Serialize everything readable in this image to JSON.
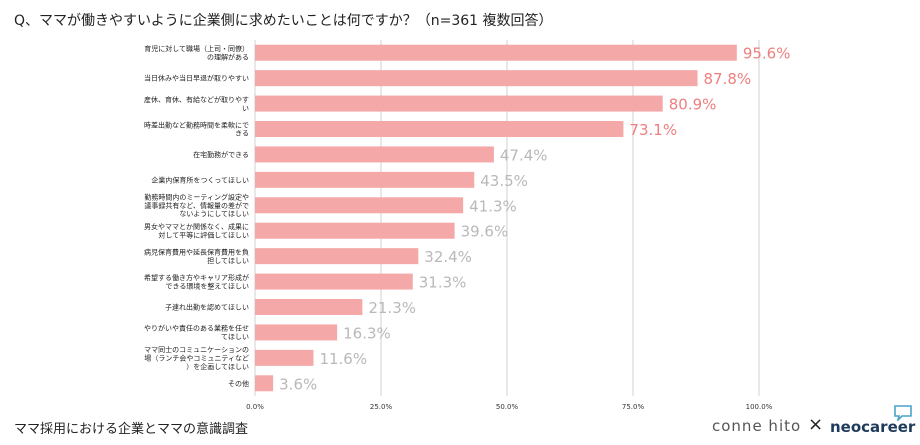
{
  "title": "Q、ママが働きやすいように企業側に求めたいことは何ですか？（n=361 複数回答）",
  "footer": {
    "caption": "ママ採用における企業とママの意識調査",
    "brand_connehito": "conne hito",
    "brand_x": "×",
    "brand_neocareer": "neocareer"
  },
  "colors": {
    "bar": "#f4a8a8",
    "highlight_label": "#ee7f7f",
    "muted_label": "#b9b9b9",
    "grid": "#d0d0d0"
  },
  "chart_data": {
    "type": "bar",
    "orientation": "horizontal",
    "categories": [
      [
        "育児に対して職場（上司・同僚）",
        "の理解がある"
      ],
      [
        "当日休みや当日早退が取りやすい"
      ],
      [
        "産休、育休、有給などが取りやす",
        "い"
      ],
      [
        "時差出勤など勤務時間を柔軟にで",
        "きる"
      ],
      [
        "在宅勤務ができる"
      ],
      [
        "企業内保育所をつくってほしい"
      ],
      [
        "勤務時間内のミーティング設定や",
        "議事録共有など、情報量の差がで",
        "ないようにしてほしい"
      ],
      [
        "男女やママとか関係なく、成果に",
        "対して平等に評価してほしい"
      ],
      [
        "病児保育費用や延長保育費用を負",
        "担してほしい"
      ],
      [
        "希望する働き方やキャリア形成が",
        "できる環境を整えてほしい"
      ],
      [
        "子連れ出勤を認めてほしい"
      ],
      [
        "やりがいや責任のある業務を任せ",
        "てほしい"
      ],
      [
        "ママ同士のコミュニケーションの",
        "場（ランチ会やコミュニティなど",
        "）を企画してほしい"
      ],
      [
        "その他"
      ]
    ],
    "values": [
      95.6,
      87.8,
      80.9,
      73.1,
      47.4,
      43.5,
      41.3,
      39.6,
      32.4,
      31.3,
      21.3,
      16.3,
      11.6,
      3.6
    ],
    "value_labels": [
      "95.6%",
      "87.8%",
      "80.9%",
      "73.1%",
      "47.4%",
      "43.5%",
      "41.3%",
      "39.6%",
      "32.4%",
      "31.3%",
      "21.3%",
      "16.3%",
      "11.6%",
      "3.6%"
    ],
    "highlight_count": 4,
    "xlim": [
      0,
      100
    ],
    "xticks": [
      0,
      25,
      50,
      75,
      100
    ],
    "xtick_labels": [
      "0.0%",
      "25.0%",
      "50.0%",
      "75.0%",
      "100.0%"
    ],
    "grid": true
  }
}
